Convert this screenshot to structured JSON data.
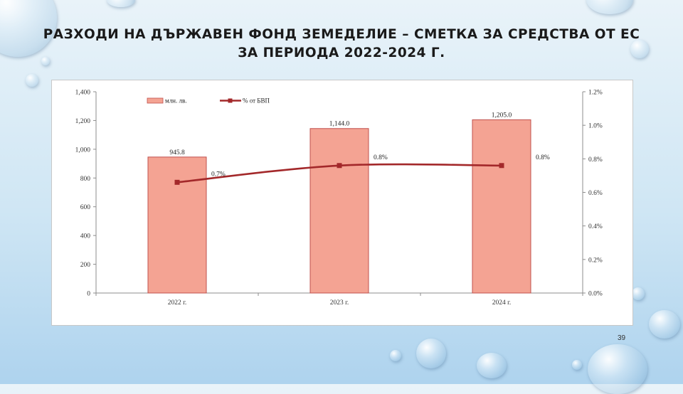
{
  "slide": {
    "title_line1": "РАЗХОДИ НА ДЪРЖАВЕН ФОНД ЗЕМЕДЕЛИЕ – СМЕТКА ЗА СРЕДСТВА ОТ ЕС",
    "title_line2": "ЗА ПЕРИОДА 2022-2024 Г.",
    "page_number": "39"
  },
  "chart_data": {
    "type": "bar",
    "categories": [
      "2022 г.",
      "2023 г.",
      "2024 г."
    ],
    "series": [
      {
        "name": "млн. лв.",
        "type": "bar",
        "axis": "left",
        "values": [
          945.8,
          1144.0,
          1205.0
        ],
        "labels": [
          "945.8",
          "1,144.0",
          "1,205.0"
        ],
        "color": "#f4a393"
      },
      {
        "name": "% от БВП",
        "type": "line",
        "axis": "right",
        "values": [
          0.66,
          0.76,
          0.76
        ],
        "labels": [
          "0.7%",
          "0.8%",
          "0.8%"
        ],
        "color": "#a3282a"
      }
    ],
    "y_left": {
      "min": 0,
      "max": 1400,
      "ticks": [
        "0",
        "200",
        "400",
        "600",
        "800",
        "1,000",
        "1,200",
        "1,400"
      ]
    },
    "y_right": {
      "min": 0,
      "max": 1.2,
      "ticks": [
        "0.0%",
        "0.2%",
        "0.4%",
        "0.6%",
        "0.8%",
        "1.0%",
        "1.2%"
      ]
    },
    "legend": "top-left",
    "grid": false
  }
}
